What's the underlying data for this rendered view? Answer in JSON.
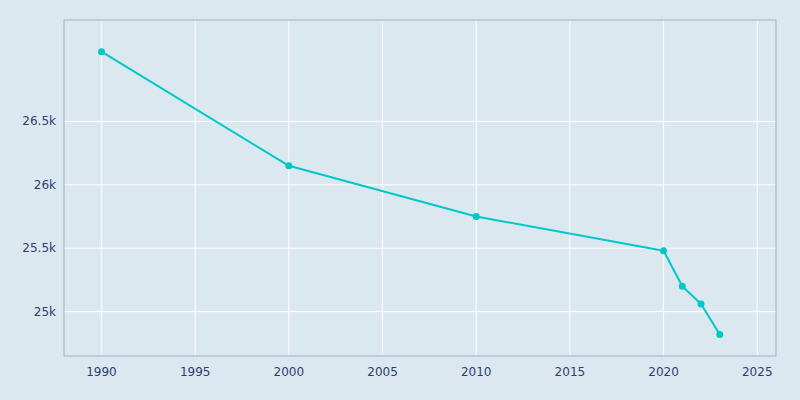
{
  "chart_data": {
    "type": "line",
    "x": [
      1990,
      2000,
      2010,
      2020,
      2021,
      2022,
      2023
    ],
    "values": [
      27050,
      26150,
      25750,
      25480,
      25200,
      25060,
      24820
    ],
    "color": "#00C8C8",
    "marker": "circle",
    "xlim": [
      1988,
      2026
    ],
    "ylim": [
      24650,
      27300
    ],
    "xticks": [
      1990,
      1995,
      2000,
      2005,
      2010,
      2015,
      2020,
      2025
    ],
    "yticks": [
      {
        "value": 25000,
        "label": "25k"
      },
      {
        "value": 25500,
        "label": "25.5k"
      },
      {
        "value": 26000,
        "label": "26k"
      },
      {
        "value": 26500,
        "label": "26.5k"
      }
    ],
    "grid": true
  }
}
